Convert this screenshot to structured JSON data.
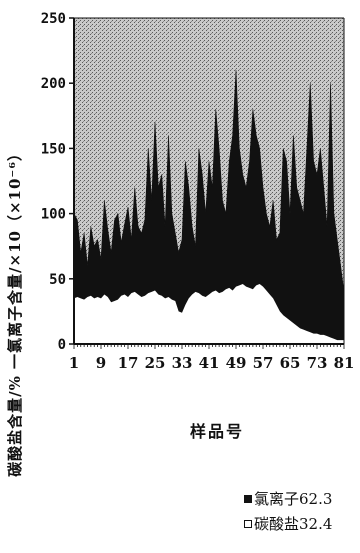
{
  "chart_data": {
    "type": "area",
    "stacked": true,
    "x": [
      1,
      2,
      3,
      4,
      5,
      6,
      7,
      8,
      9,
      10,
      11,
      12,
      13,
      14,
      15,
      16,
      17,
      18,
      19,
      20,
      21,
      22,
      23,
      24,
      25,
      26,
      27,
      28,
      29,
      30,
      31,
      32,
      33,
      34,
      35,
      36,
      37,
      38,
      39,
      40,
      41,
      42,
      43,
      44,
      45,
      46,
      47,
      48,
      49,
      50,
      51,
      52,
      53,
      54,
      55,
      56,
      57,
      58,
      59,
      60,
      61,
      62,
      63,
      64,
      65,
      66,
      67,
      68,
      69,
      70,
      71,
      72,
      73,
      74,
      75,
      76,
      77,
      78,
      79,
      80,
      81
    ],
    "xticks": [
      1,
      9,
      17,
      25,
      33,
      41,
      49,
      57,
      65,
      73,
      81
    ],
    "xlabel": "样品号",
    "ylabel": "碳酸盐含量/% 一氯离子含量/×10（×10⁻⁶）",
    "yticks": [
      0,
      50,
      100,
      150,
      200,
      250
    ],
    "ylim": [
      0,
      250
    ],
    "series": [
      {
        "name": "碳酸盐32.4",
        "values": [
          35,
          36,
          35,
          34,
          36,
          37,
          35,
          36,
          35,
          38,
          36,
          32,
          33,
          34,
          37,
          38,
          36,
          39,
          40,
          38,
          36,
          37,
          39,
          40,
          41,
          38,
          37,
          35,
          36,
          34,
          33,
          25,
          24,
          30,
          35,
          38,
          40,
          39,
          37,
          36,
          38,
          40,
          41,
          39,
          40,
          42,
          43,
          41,
          44,
          45,
          46,
          44,
          43,
          42,
          45,
          46,
          44,
          41,
          38,
          35,
          30,
          25,
          22,
          20,
          18,
          16,
          14,
          12,
          11,
          10,
          9,
          8,
          8,
          7,
          7,
          6,
          5,
          4,
          3,
          3,
          3
        ]
      },
      {
        "name": "氯离子62.3",
        "values": [
          100,
          95,
          70,
          85,
          60,
          90,
          75,
          80,
          65,
          110,
          88,
          70,
          95,
          100,
          78,
          92,
          105,
          80,
          120,
          90,
          85,
          95,
          150,
          110,
          170,
          120,
          130,
          90,
          160,
          100,
          85,
          70,
          80,
          140,
          120,
          90,
          75,
          150,
          130,
          100,
          140,
          120,
          180,
          150,
          110,
          100,
          140,
          160,
          210,
          150,
          130,
          120,
          140,
          180,
          160,
          150,
          120,
          100,
          90,
          110,
          80,
          85,
          150,
          140,
          100,
          160,
          120,
          110,
          100,
          150,
          200,
          140,
          130,
          150,
          120,
          90,
          200,
          100,
          80,
          60,
          40
        ]
      }
    ],
    "legend": [
      "氯离子62.3",
      "碳酸盐32.4"
    ],
    "legend_position": "bottom-right",
    "grid": false
  },
  "colors": {
    "chloride_fill": "#111111",
    "carbonate_fill": "#ffffff",
    "frame": "#111111"
  }
}
